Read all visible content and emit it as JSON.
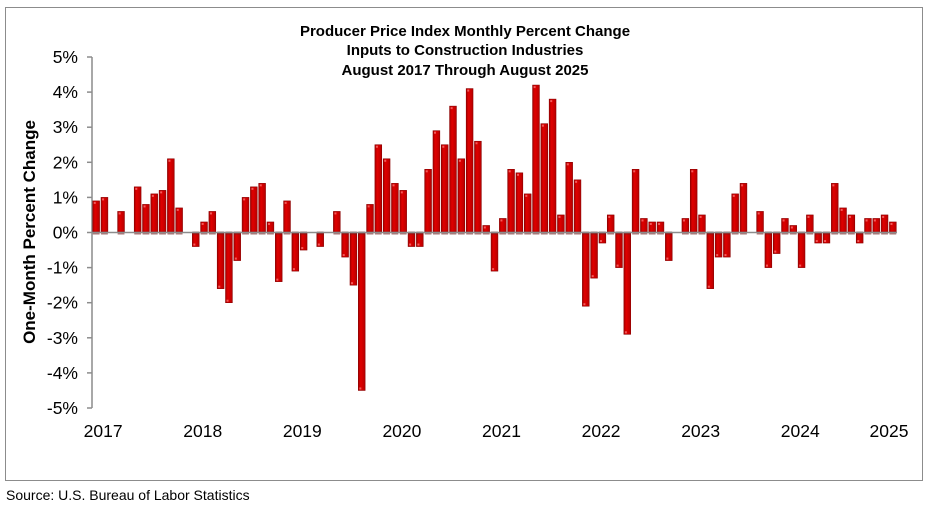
{
  "chart_data": {
    "type": "bar",
    "title": "Producer Price Index Monthly Percent Change",
    "subtitle": [
      "Inputs to Construction Industries",
      "August 2017 Through August 2025"
    ],
    "xlabel": "",
    "ylabel": "One-Month Percent Change",
    "ylim": [
      -5,
      5
    ],
    "yticks": [
      5,
      4,
      3,
      2,
      1,
      0,
      -1,
      -2,
      -3,
      -4,
      -5
    ],
    "ytick_labels": [
      "5%",
      "4%",
      "3%",
      "2%",
      "1%",
      "0%",
      "-1%",
      "-2%",
      "-3%",
      "-4%",
      "-5%"
    ],
    "xtick_labels": [
      "2017",
      "2018",
      "2019",
      "2020",
      "2021",
      "2022",
      "2023",
      "2024",
      "2025"
    ],
    "xtick_every": 12,
    "grid": false,
    "legend": "none",
    "bar_color": "#d40000",
    "categories": [
      "Aug 2017",
      "Sep 2017",
      "Oct 2017",
      "Nov 2017",
      "Dec 2017",
      "Jan 2018",
      "Feb 2018",
      "Mar 2018",
      "Apr 2018",
      "May 2018",
      "Jun 2018",
      "Jul 2018",
      "Aug 2018",
      "Sep 2018",
      "Oct 2018",
      "Nov 2018",
      "Dec 2018",
      "Jan 2019",
      "Feb 2019",
      "Mar 2019",
      "Apr 2019",
      "May 2019",
      "Jun 2019",
      "Jul 2019",
      "Aug 2019",
      "Sep 2019",
      "Oct 2019",
      "Nov 2019",
      "Dec 2019",
      "Jan 2020",
      "Feb 2020",
      "Mar 2020",
      "Apr 2020",
      "May 2020",
      "Jun 2020",
      "Jul 2020",
      "Aug 2020",
      "Sep 2020",
      "Oct 2020",
      "Nov 2020",
      "Dec 2020",
      "Jan 2021",
      "Feb 2021",
      "Mar 2021",
      "Apr 2021",
      "May 2021",
      "Jun 2021",
      "Jul 2021",
      "Aug 2021",
      "Sep 2021",
      "Oct 2021",
      "Nov 2021",
      "Dec 2021",
      "Jan 2022",
      "Feb 2022",
      "Mar 2022",
      "Apr 2022",
      "May 2022",
      "Jun 2022",
      "Jul 2022",
      "Aug 2022",
      "Sep 2022",
      "Oct 2022",
      "Nov 2022",
      "Dec 2022",
      "Jan 2023",
      "Feb 2023",
      "Mar 2023",
      "Apr 2023",
      "May 2023",
      "Jun 2023",
      "Jul 2023",
      "Aug 2023",
      "Sep 2023",
      "Oct 2023",
      "Nov 2023",
      "Dec 2023",
      "Jan 2024",
      "Feb 2024",
      "Mar 2024",
      "Apr 2024",
      "May 2024",
      "Jun 2024",
      "Jul 2024",
      "Aug 2024",
      "Sep 2024",
      "Oct 2024",
      "Nov 2024",
      "Dec 2024",
      "Jan 2025",
      "Feb 2025",
      "Mar 2025",
      "Apr 2025",
      "May 2025",
      "Jun 2025",
      "Jul 2025",
      "Aug 2025"
    ],
    "values": [
      0.9,
      1.0,
      0.0,
      0.6,
      0.0,
      1.3,
      0.8,
      1.1,
      1.2,
      2.1,
      0.7,
      0.0,
      -0.4,
      0.3,
      0.6,
      -1.6,
      -2.0,
      -0.8,
      1.0,
      1.3,
      1.4,
      0.3,
      -1.4,
      0.9,
      -1.1,
      -0.5,
      0.0,
      -0.4,
      0.0,
      0.6,
      -0.7,
      -1.5,
      -4.5,
      0.8,
      2.5,
      2.1,
      1.4,
      1.2,
      -0.4,
      -0.4,
      1.8,
      2.9,
      2.5,
      3.6,
      2.1,
      4.1,
      2.6,
      0.2,
      -1.1,
      0.4,
      1.8,
      1.7,
      1.1,
      4.2,
      3.1,
      3.8,
      0.5,
      2.0,
      1.5,
      -2.1,
      -1.3,
      -0.3,
      0.5,
      -1.0,
      -2.9,
      1.8,
      0.4,
      0.3,
      0.3,
      -0.8,
      0.0,
      0.4,
      1.8,
      0.5,
      -1.6,
      -0.7,
      -0.7,
      1.1,
      1.4,
      0.0,
      0.6,
      -1.0,
      -0.6,
      0.4,
      0.2,
      -1.0,
      0.5,
      -0.3,
      -0.3,
      1.4,
      0.7,
      0.5,
      -0.3,
      0.4,
      0.4,
      0.5,
      0.3
    ]
  },
  "footer": {
    "source": "Source: U.S. Bureau of Labor Statistics"
  }
}
